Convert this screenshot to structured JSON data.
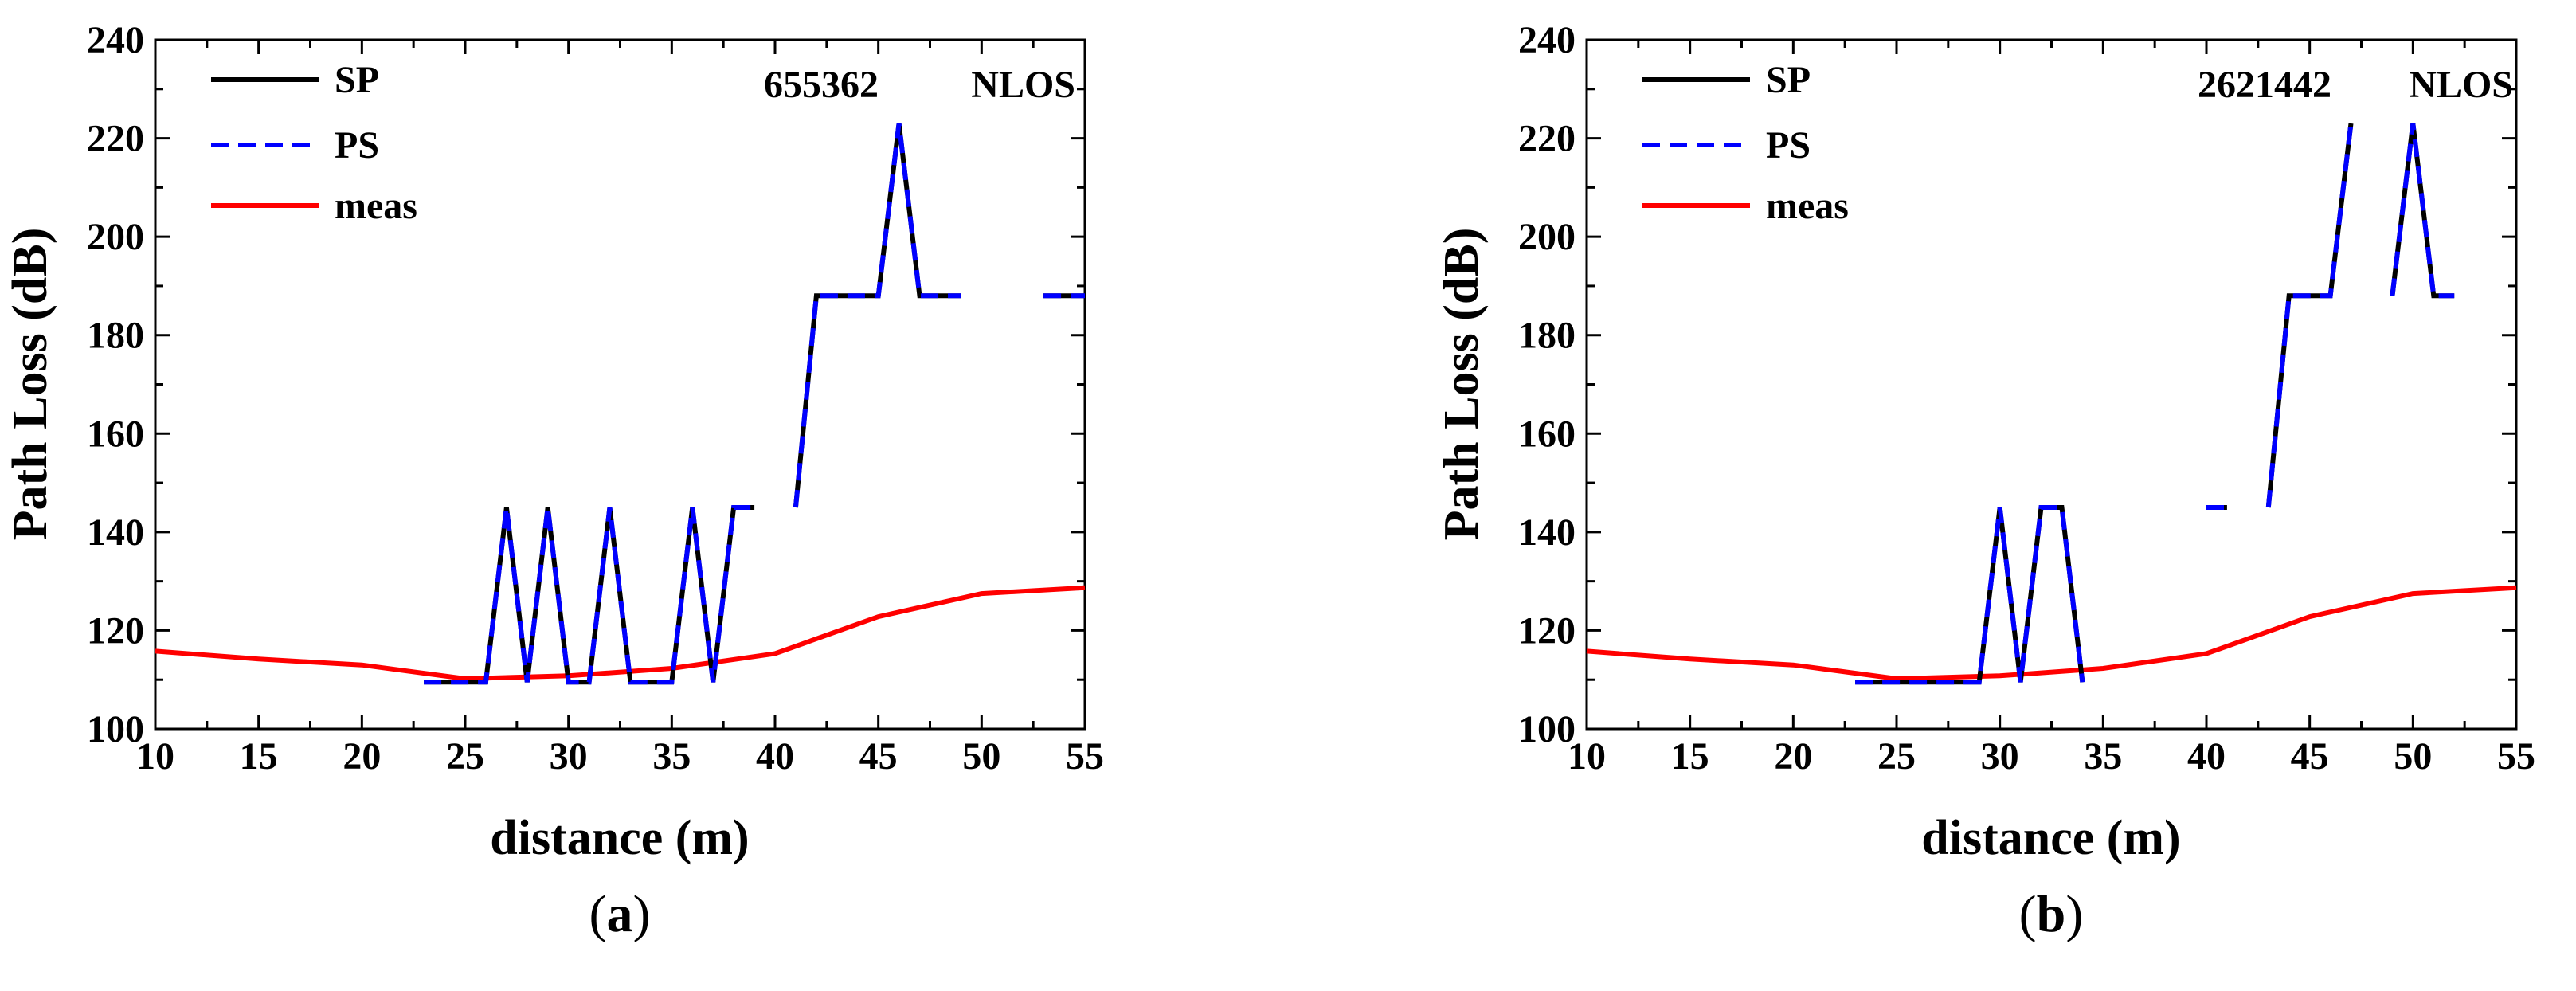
{
  "colors": {
    "sp": "#000000",
    "ps": "#0000ff",
    "meas": "#ff0000"
  },
  "chart_data": [
    {
      "type": "line",
      "panel": "a",
      "caption": {
        "open": "(",
        "letter": "a",
        "close": ")"
      },
      "annotation": {
        "number": "655362",
        "label": "NLOS"
      },
      "xlabel": "distance (m)",
      "ylabel": "Path Loss (dB)",
      "xlim": [
        10,
        55
      ],
      "ylim": [
        100,
        240
      ],
      "xticks": [
        10,
        15,
        20,
        25,
        30,
        35,
        40,
        45,
        50,
        55
      ],
      "yticks": [
        100,
        120,
        140,
        160,
        180,
        200,
        220,
        240
      ],
      "legend": [
        "SP",
        "PS",
        "meas"
      ],
      "series": [
        {
          "name": "SP",
          "segments": [
            [
              [
                23,
                109.5
              ],
              [
                26,
                109.5
              ],
              [
                27,
                145
              ],
              [
                28,
                109.5
              ],
              [
                29,
                145
              ],
              [
                30,
                109.5
              ],
              [
                31,
                109.5
              ],
              [
                32,
                145
              ],
              [
                33,
                109.5
              ],
              [
                35,
                109.5
              ],
              [
                36,
                145
              ],
              [
                37,
                109.5
              ],
              [
                38,
                145
              ],
              [
                39,
                145
              ]
            ],
            [
              [
                41,
                145
              ],
              [
                42,
                188
              ],
              [
                45,
                188
              ],
              [
                46,
                223
              ],
              [
                47,
                188
              ],
              [
                49,
                188
              ]
            ],
            [
              [
                53,
                188
              ],
              [
                55,
                188
              ]
            ]
          ]
        },
        {
          "name": "PS",
          "segments": [
            [
              [
                23,
                109.5
              ],
              [
                26,
                109.5
              ],
              [
                27,
                145
              ],
              [
                28,
                109.5
              ],
              [
                29,
                145
              ],
              [
                30,
                109.5
              ],
              [
                31,
                109.5
              ],
              [
                32,
                145
              ],
              [
                33,
                109.5
              ],
              [
                35,
                109.5
              ],
              [
                36,
                145
              ],
              [
                37,
                109.5
              ],
              [
                38,
                145
              ],
              [
                39,
                145
              ]
            ],
            [
              [
                41,
                145
              ],
              [
                42,
                188
              ],
              [
                45,
                188
              ],
              [
                46,
                223
              ],
              [
                47,
                188
              ],
              [
                49,
                188
              ]
            ],
            [
              [
                53,
                188
              ],
              [
                55,
                188
              ]
            ]
          ]
        },
        {
          "name": "meas",
          "segments": [
            [
              [
                10,
                115.8
              ],
              [
                15,
                114.2
              ],
              [
                20,
                113
              ],
              [
                25,
                110.2
              ],
              [
                30,
                110.8
              ],
              [
                35,
                112.3
              ],
              [
                40,
                115.3
              ],
              [
                45,
                122.8
              ],
              [
                50,
                127.5
              ],
              [
                55,
                128.7
              ]
            ]
          ]
        }
      ]
    },
    {
      "type": "line",
      "panel": "b",
      "caption": {
        "open": "(",
        "letter": "b",
        "close": ")"
      },
      "annotation": {
        "number": "2621442",
        "label": "NLOS"
      },
      "xlabel": "distance (m)",
      "ylabel": "Path Loss (dB)",
      "xlim": [
        10,
        55
      ],
      "ylim": [
        100,
        240
      ],
      "xticks": [
        10,
        15,
        20,
        25,
        30,
        35,
        40,
        45,
        50,
        55
      ],
      "yticks": [
        100,
        120,
        140,
        160,
        180,
        200,
        220,
        240
      ],
      "legend": [
        "SP",
        "PS",
        "meas"
      ],
      "series": [
        {
          "name": "SP",
          "segments": [
            [
              [
                23,
                109.5
              ],
              [
                29,
                109.5
              ],
              [
                30,
                145
              ],
              [
                31,
                109.5
              ],
              [
                32,
                145
              ],
              [
                33,
                145
              ],
              [
                34,
                109.5
              ]
            ],
            [
              [
                40,
                145
              ],
              [
                41,
                145
              ]
            ],
            [
              [
                43,
                145
              ],
              [
                44,
                188
              ],
              [
                46,
                188
              ],
              [
                47,
                223
              ]
            ],
            [
              [
                49,
                188
              ],
              [
                50,
                223
              ],
              [
                51,
                188
              ],
              [
                52,
                188
              ]
            ]
          ]
        },
        {
          "name": "PS",
          "segments": [
            [
              [
                23,
                109.5
              ],
              [
                29,
                109.5
              ],
              [
                30,
                145
              ],
              [
                31,
                109.5
              ],
              [
                32,
                145
              ],
              [
                33,
                145
              ],
              [
                34,
                109.5
              ]
            ],
            [
              [
                40,
                145
              ],
              [
                41,
                145
              ]
            ],
            [
              [
                43,
                145
              ],
              [
                44,
                188
              ],
              [
                46,
                188
              ],
              [
                47,
                223
              ]
            ],
            [
              [
                49,
                188
              ],
              [
                50,
                223
              ],
              [
                51,
                188
              ],
              [
                52,
                188
              ]
            ]
          ]
        },
        {
          "name": "meas",
          "segments": [
            [
              [
                10,
                115.8
              ],
              [
                15,
                114.2
              ],
              [
                20,
                113
              ],
              [
                25,
                110.2
              ],
              [
                30,
                110.8
              ],
              [
                35,
                112.3
              ],
              [
                40,
                115.3
              ],
              [
                45,
                122.8
              ],
              [
                50,
                127.5
              ],
              [
                55,
                128.7
              ]
            ]
          ]
        }
      ]
    }
  ]
}
